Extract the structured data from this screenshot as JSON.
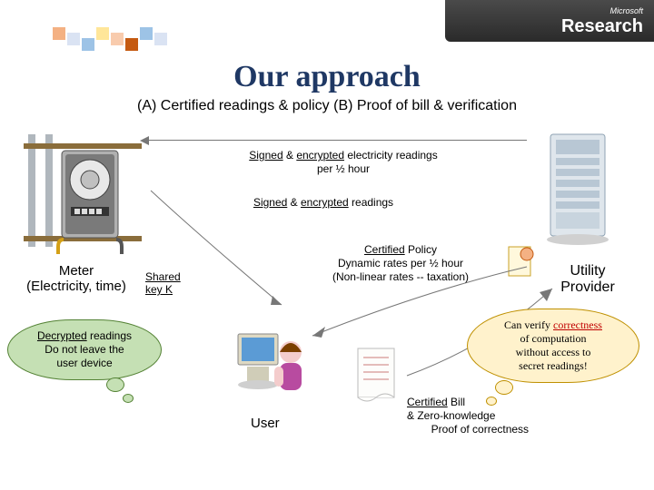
{
  "logo": {
    "brand": "Microsoft",
    "product": "Research"
  },
  "header_pixels": [
    "#f4b183",
    "#dae3f3",
    "#9dc3e6",
    "#ffe699",
    "#f8cbad",
    "#c55a11",
    "#9dc3e6",
    "#dae3f3"
  ],
  "title": "Our approach",
  "subtitle": "(A) Certified readings & policy (B) Proof of bill & verification",
  "meter": {
    "label_line1": "Meter",
    "label_line2": "(Electricity, time)"
  },
  "provider": {
    "label_line1": "Utility",
    "label_line2": "Provider"
  },
  "user": {
    "label": "User"
  },
  "shared_key": {
    "line1": "Shared",
    "line2": "key K"
  },
  "arrows": {
    "top": {
      "text_html": "<span class='u'>Signed</span> & <span class='u'>encrypted</span> electricity readings per ½ hour"
    },
    "mid": {
      "text_html": "<span class='u'>Signed</span> & <span class='u'>encrypted</span> readings"
    },
    "policy": {
      "text_html": "<span class='u'>Certified</span> Policy<br>Dynamic rates per ½ hour<br>(Non-linear rates -- taxation)"
    },
    "bill": {
      "text_html": "<span class='u'>Certified</span> Bill<br>& Zero-knowledge<br>&nbsp;&nbsp;&nbsp;&nbsp;&nbsp;&nbsp;&nbsp;&nbsp;Proof of correctness"
    }
  },
  "clouds": {
    "green": {
      "text_html": "<span class='u'>Decrypted</span> readings<br>Do not leave the<br>user device"
    },
    "yellow": {
      "text_html": "Can verify <span class='red'>correctness</span><br>of computation<br>without access to<br>secret readings!"
    }
  },
  "colors": {
    "title": "#1f3864",
    "cloud_green_fill": "#c5e0b4",
    "cloud_green_border": "#548235",
    "cloud_yellow_fill": "#fff2cc",
    "cloud_yellow_border": "#bf9000",
    "arrow": "#777777"
  }
}
